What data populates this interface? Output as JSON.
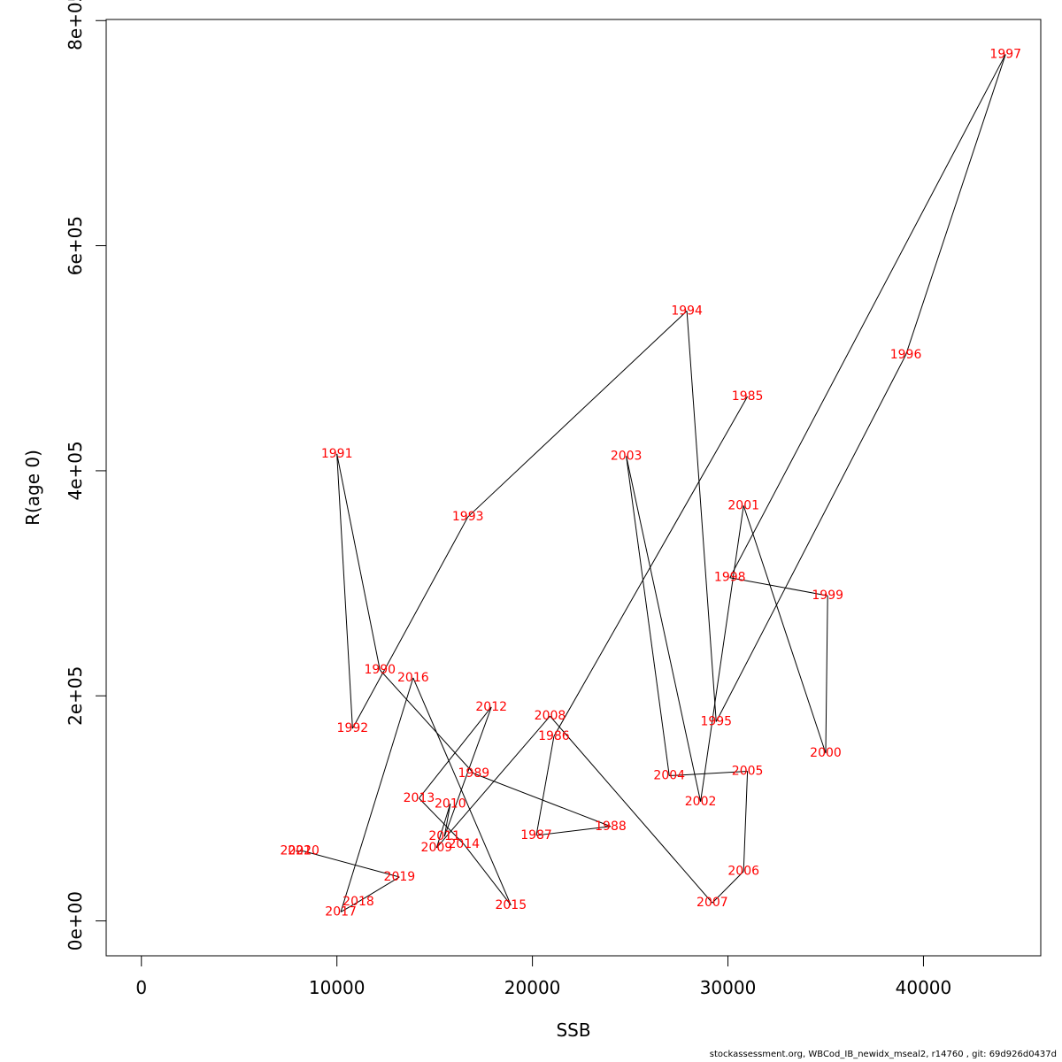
{
  "footer": "stockassessment.org, WBCod_IB_newidx_mseal2, r14760 , git: 69d926d0437d",
  "chart_data": {
    "type": "line",
    "title": "",
    "xlabel": "SSB",
    "ylabel": "R(age 0)",
    "xlim": [
      -1800,
      46000
    ],
    "ylim": [
      -31000,
      801000
    ],
    "x_ticks": [
      0,
      10000,
      20000,
      30000,
      40000
    ],
    "x_tick_labels": [
      "0",
      "10000",
      "20000",
      "30000",
      "40000"
    ],
    "y_ticks": [
      0,
      200000,
      400000,
      600000,
      800000
    ],
    "y_tick_labels": [
      "0e+00",
      "2e+05",
      "4e+05",
      "6e+05",
      "8e+05"
    ],
    "grid": false,
    "label_color": "#ff0000",
    "line_color": "#000000",
    "points": [
      {
        "year": "1985",
        "x": 31000,
        "y": 466000
      },
      {
        "year": "1986",
        "x": 21100,
        "y": 164000
      },
      {
        "year": "1987",
        "x": 20200,
        "y": 76000
      },
      {
        "year": "1988",
        "x": 24000,
        "y": 84000
      },
      {
        "year": "1989",
        "x": 17000,
        "y": 131000
      },
      {
        "year": "1990",
        "x": 12200,
        "y": 223000
      },
      {
        "year": "1991",
        "x": 10000,
        "y": 415000
      },
      {
        "year": "1992",
        "x": 10800,
        "y": 171000
      },
      {
        "year": "1993",
        "x": 16700,
        "y": 359000
      },
      {
        "year": "1994",
        "x": 27900,
        "y": 542000
      },
      {
        "year": "1995",
        "x": 29400,
        "y": 177000
      },
      {
        "year": "1996",
        "x": 39100,
        "y": 503000
      },
      {
        "year": "1997",
        "x": 44200,
        "y": 770000
      },
      {
        "year": "1998",
        "x": 30100,
        "y": 305000
      },
      {
        "year": "1999",
        "x": 35100,
        "y": 289000
      },
      {
        "year": "2000",
        "x": 35000,
        "y": 149000
      },
      {
        "year": "2001",
        "x": 30800,
        "y": 369000
      },
      {
        "year": "2002",
        "x": 28600,
        "y": 106000
      },
      {
        "year": "2003",
        "x": 24800,
        "y": 413000
      },
      {
        "year": "2004",
        "x": 27000,
        "y": 129000
      },
      {
        "year": "2005",
        "x": 31000,
        "y": 133000
      },
      {
        "year": "2006",
        "x": 30800,
        "y": 44000
      },
      {
        "year": "2007",
        "x": 29200,
        "y": 16000
      },
      {
        "year": "2008",
        "x": 20900,
        "y": 182000
      },
      {
        "year": "2009",
        "x": 15100,
        "y": 65000
      },
      {
        "year": "2010",
        "x": 15800,
        "y": 104000
      },
      {
        "year": "2011",
        "x": 15500,
        "y": 75000
      },
      {
        "year": "2012",
        "x": 17900,
        "y": 190000
      },
      {
        "year": "2013",
        "x": 14200,
        "y": 109000
      },
      {
        "year": "2014",
        "x": 16500,
        "y": 68000
      },
      {
        "year": "2015",
        "x": 18900,
        "y": 14000
      },
      {
        "year": "2016",
        "x": 13900,
        "y": 216000
      },
      {
        "year": "2017",
        "x": 10200,
        "y": 8000
      },
      {
        "year": "2018",
        "x": 11100,
        "y": 17000
      },
      {
        "year": "2019",
        "x": 13200,
        "y": 39000
      },
      {
        "year": "2020",
        "x": 8300,
        "y": 62000
      },
      {
        "year": "2021",
        "x": 7900,
        "y": 62000
      }
    ]
  }
}
